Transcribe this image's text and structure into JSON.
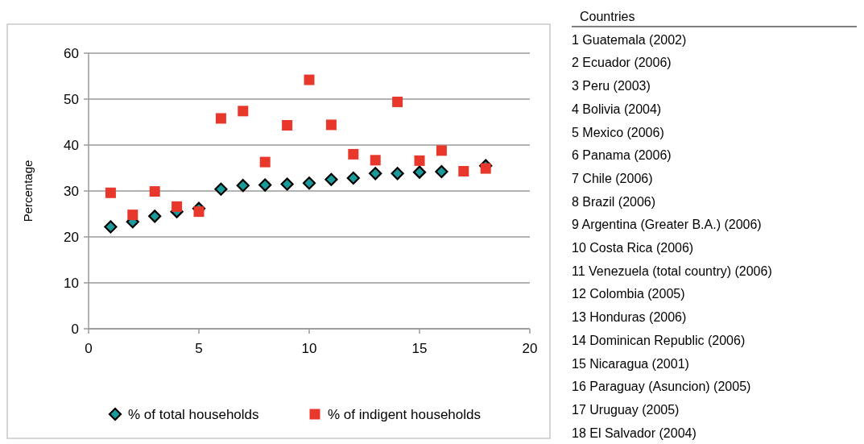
{
  "chart_data": {
    "type": "scatter",
    "ylabel": "Percentage",
    "xlim": [
      0,
      20
    ],
    "xticks": [
      0,
      5,
      10,
      15,
      20
    ],
    "ylim": [
      0,
      60
    ],
    "yticks": [
      0,
      10,
      20,
      30,
      40,
      50,
      60
    ],
    "grid": "y",
    "legend": "bottom",
    "series": [
      {
        "name": "% of total households",
        "color": "#1a9a9a",
        "marker": "diamond",
        "x": [
          1,
          2,
          3,
          4,
          5,
          6,
          7,
          8,
          9,
          10,
          11,
          12,
          13,
          14,
          15,
          16,
          17,
          18
        ],
        "values": [
          22.2,
          23.3,
          24.5,
          25.5,
          26.2,
          30.4,
          31.2,
          31.3,
          31.5,
          31.7,
          32.5,
          32.8,
          33.8,
          33.8,
          34.1,
          34.2,
          null,
          35.5
        ]
      },
      {
        "name": "% of indigent households",
        "color": "#e8382b",
        "marker": "square",
        "x": [
          1,
          2,
          3,
          4,
          5,
          6,
          7,
          8,
          9,
          10,
          11,
          12,
          13,
          14,
          15,
          16,
          17,
          18
        ],
        "values": [
          29.6,
          24.8,
          29.9,
          26.6,
          25.5,
          45.8,
          47.4,
          36.3,
          44.3,
          54.2,
          44.4,
          38.0,
          36.7,
          49.4,
          36.6,
          38.8,
          34.3,
          34.9
        ]
      }
    ],
    "annotations": [
      "Countries",
      "1 Guatemala (2002)",
      "2 Ecuador (2006)",
      "3 Peru (2003)",
      "4 Bolivia (2004)",
      "5 Mexico (2006)",
      "6 Panama (2006)",
      "7 Chile (2006)",
      "8 Brazil (2006)",
      "9 Argentina (Greater B.A.) (2006)",
      "10 Costa Rica (2006)",
      "11 Venezuela (total country) (2006)",
      "12 Colombia (2005)",
      "13 Honduras (2006)",
      "14 Dominican Republic (2006)",
      "15 Nicaragua (2001)",
      "16 Paraguay (Asuncion) (2005)",
      "17 Uruguay (2005)",
      "18 El Salvador (2004)"
    ]
  }
}
